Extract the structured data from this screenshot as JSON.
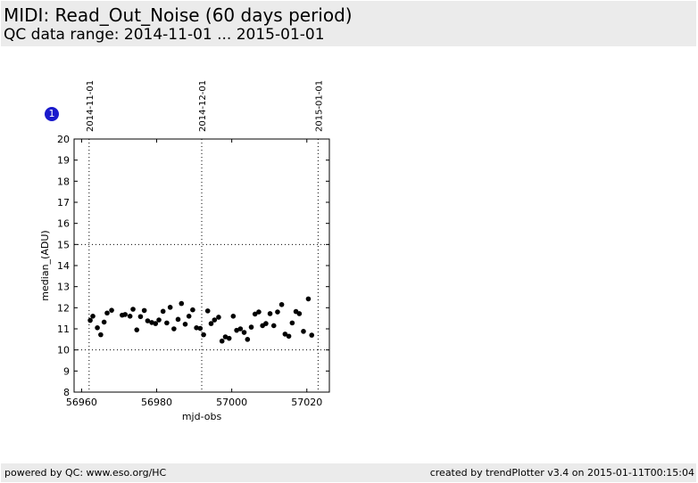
{
  "header": {
    "title": "MIDI: Read_Out_Noise (60 days period)",
    "subtitle": "QC data range: 2014-11-01 ... 2015-01-01"
  },
  "badge": {
    "label": "1"
  },
  "footer": {
    "left": "powered by QC: www.eso.org/HC",
    "right": "created by trendPlotter v3.4 on 2015-01-11T00:15:04"
  },
  "chart_data": {
    "type": "scatter",
    "xlabel": "mjd-obs",
    "ylabel": "median_(ADU)",
    "xlim": [
      56958,
      57026
    ],
    "ylim": [
      8,
      20
    ],
    "x_ticks": [
      56960,
      56980,
      57000,
      57020
    ],
    "y_ticks": [
      8,
      9,
      10,
      11,
      12,
      13,
      14,
      15,
      16,
      17,
      18,
      19,
      20
    ],
    "y_reference_lines": [
      10,
      15
    ],
    "date_markers": [
      {
        "x": 56962.0,
        "label": "2014-11-01"
      },
      {
        "x": 56992.0,
        "label": "2014-12-01"
      },
      {
        "x": 57023.0,
        "label": "2015-01-01"
      }
    ],
    "marker_color": "#000000",
    "points": [
      {
        "x": 56962.3,
        "y": 11.4
      },
      {
        "x": 56963.0,
        "y": 11.6
      },
      {
        "x": 56964.2,
        "y": 11.05
      },
      {
        "x": 56965.1,
        "y": 10.72
      },
      {
        "x": 56966.0,
        "y": 11.32
      },
      {
        "x": 56966.8,
        "y": 11.75
      },
      {
        "x": 56968.0,
        "y": 11.88
      },
      {
        "x": 56970.8,
        "y": 11.65
      },
      {
        "x": 56971.6,
        "y": 11.68
      },
      {
        "x": 56972.9,
        "y": 11.6
      },
      {
        "x": 56973.7,
        "y": 11.93
      },
      {
        "x": 56974.7,
        "y": 10.95
      },
      {
        "x": 56975.7,
        "y": 11.58
      },
      {
        "x": 56976.7,
        "y": 11.87
      },
      {
        "x": 56977.6,
        "y": 11.38
      },
      {
        "x": 56978.7,
        "y": 11.3
      },
      {
        "x": 56979.7,
        "y": 11.25
      },
      {
        "x": 56980.6,
        "y": 11.42
      },
      {
        "x": 56981.7,
        "y": 11.83
      },
      {
        "x": 56982.7,
        "y": 11.28
      },
      {
        "x": 56983.6,
        "y": 12.02
      },
      {
        "x": 56984.6,
        "y": 11.0
      },
      {
        "x": 56985.7,
        "y": 11.45
      },
      {
        "x": 56986.6,
        "y": 12.2
      },
      {
        "x": 56987.6,
        "y": 11.22
      },
      {
        "x": 56988.6,
        "y": 11.6
      },
      {
        "x": 56989.6,
        "y": 11.9
      },
      {
        "x": 56990.6,
        "y": 11.05
      },
      {
        "x": 56991.6,
        "y": 11.02
      },
      {
        "x": 56992.5,
        "y": 10.72
      },
      {
        "x": 56993.6,
        "y": 11.85
      },
      {
        "x": 56994.5,
        "y": 11.25
      },
      {
        "x": 56995.4,
        "y": 11.42
      },
      {
        "x": 56996.5,
        "y": 11.55
      },
      {
        "x": 56997.4,
        "y": 10.42
      },
      {
        "x": 56998.3,
        "y": 10.62
      },
      {
        "x": 56999.3,
        "y": 10.55
      },
      {
        "x": 57000.4,
        "y": 11.6
      },
      {
        "x": 57001.3,
        "y": 10.93
      },
      {
        "x": 57002.3,
        "y": 11.0
      },
      {
        "x": 57003.3,
        "y": 10.83
      },
      {
        "x": 57004.2,
        "y": 10.5
      },
      {
        "x": 57005.2,
        "y": 11.08
      },
      {
        "x": 57006.2,
        "y": 11.7
      },
      {
        "x": 57007.2,
        "y": 11.8
      },
      {
        "x": 57008.2,
        "y": 11.15
      },
      {
        "x": 57009.1,
        "y": 11.25
      },
      {
        "x": 57010.2,
        "y": 11.72
      },
      {
        "x": 57011.2,
        "y": 11.15
      },
      {
        "x": 57012.2,
        "y": 11.8
      },
      {
        "x": 57013.3,
        "y": 12.15
      },
      {
        "x": 57014.2,
        "y": 10.75
      },
      {
        "x": 57015.2,
        "y": 10.65
      },
      {
        "x": 57016.1,
        "y": 11.28
      },
      {
        "x": 57017.1,
        "y": 11.82
      },
      {
        "x": 57018.0,
        "y": 11.72
      },
      {
        "x": 57019.1,
        "y": 10.88
      },
      {
        "x": 57020.4,
        "y": 12.42
      },
      {
        "x": 57021.3,
        "y": 10.7
      }
    ]
  }
}
